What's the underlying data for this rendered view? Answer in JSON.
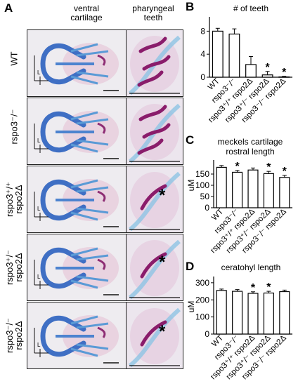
{
  "figure": {
    "panel_a": {
      "letter": "A",
      "col1_header": "ventral\ncartilage",
      "col2_header": "pharyngeal\nteeth",
      "rows": [
        {
          "label_line1": "WT",
          "label_line2": "",
          "asterisk": ""
        },
        {
          "label_line1": "rspo3⁻/⁻",
          "label_line2": "",
          "asterisk": ""
        },
        {
          "label_line1": "rspo3⁺/⁺",
          "label_line2": "rspo2Δ",
          "asterisk": "*"
        },
        {
          "label_line1": "rspo3⁺/⁻",
          "label_line2": "rspo2Δ",
          "asterisk": "*"
        },
        {
          "label_line1": "rspo3⁻/⁻",
          "label_line2": "rspo2Δ",
          "asterisk": "*"
        }
      ],
      "length_marker": "L"
    },
    "chart_data": [
      {
        "panel": "B",
        "type": "bar",
        "title": "# of teeth",
        "ylabel": "",
        "ylim": [
          0,
          10
        ],
        "yticks": [
          0,
          4,
          8
        ],
        "categories": [
          "WT",
          "rspo3⁻/⁻",
          "rspo3⁺/⁺ rspo2Δ",
          "rspo3⁺/⁻ rspo2Δ",
          "rspo3⁻/⁻ rspo2Δ"
        ],
        "values": [
          8.0,
          7.5,
          2.2,
          0.4,
          0.05
        ],
        "errors": [
          0.5,
          0.9,
          1.4,
          0.6,
          0.1
        ],
        "significance": [
          "",
          "",
          "",
          "*",
          "*"
        ]
      },
      {
        "panel": "C",
        "type": "bar",
        "title": "meckels cartilage\nrostral length",
        "ylabel": "uM",
        "ylim": [
          0,
          200
        ],
        "yticks": [
          0,
          50,
          100,
          150
        ],
        "categories": [
          "WT",
          "rspo3⁻/⁻",
          "rspo3⁺/⁺ rspo2Δ",
          "rspo3⁺/⁻ rspo2Δ",
          "rspo3⁻/⁻ rspo2Δ"
        ],
        "values": [
          180,
          158,
          168,
          152,
          135
        ],
        "errors": [
          8,
          8,
          9,
          10,
          9
        ],
        "significance": [
          "",
          "*",
          "",
          "*",
          "*"
        ]
      },
      {
        "panel": "D",
        "type": "bar",
        "title": "ceratohyl length",
        "ylabel": "uM",
        "ylim": [
          0,
          320
        ],
        "yticks": [
          0,
          100,
          200,
          300
        ],
        "categories": [
          "WT",
          "rspo3⁻/⁻",
          "rspo3⁺/⁺ rspo2Δ",
          "rspo3⁺/⁻ rspo2Δ",
          "rspo3⁻/⁻ rspo2Δ"
        ],
        "values": [
          255,
          250,
          238,
          240,
          248
        ],
        "errors": [
          8,
          10,
          9,
          10,
          9
        ],
        "significance": [
          "",
          "",
          "*",
          "*",
          ""
        ]
      }
    ]
  }
}
